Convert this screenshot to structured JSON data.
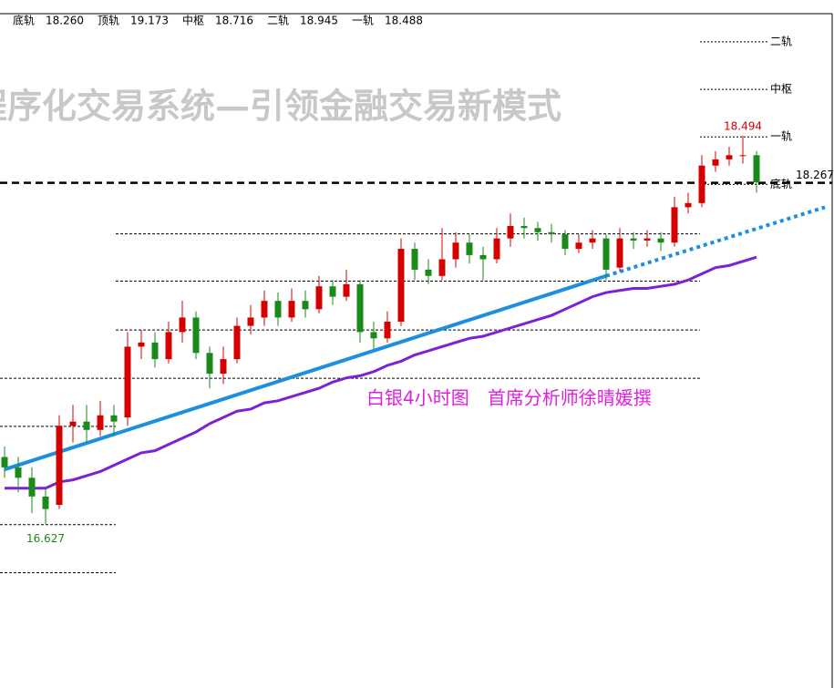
{
  "chart_data": {
    "type": "candlestick",
    "watermark": "程序化交易系统—引领金融交易新模式",
    "caption": "白银4小时图　首席分析师徐晴媛撰",
    "band_names": [
      "底轨",
      "顶轨",
      "中枢",
      "二轨",
      "一轨"
    ],
    "band_values": [
      18.26,
      19.173,
      18.716,
      18.945,
      18.488
    ],
    "band_value_labels": [
      "18.260",
      "19.173",
      "18.716",
      "18.945",
      "18.488"
    ],
    "last_price": 18.267,
    "ylim": [
      15.84,
      19.08
    ],
    "up_color": "#d40000",
    "down_color": "#1a8a1a",
    "levels": [
      18.022,
      17.795,
      17.56,
      17.328,
      17.097,
      16.625,
      16.394
    ],
    "open": [
      16.95,
      16.9,
      16.85,
      16.76,
      16.72,
      17.1,
      17.12,
      17.08,
      17.15,
      17.14,
      17.48,
      17.5,
      17.42,
      17.55,
      17.62,
      17.45,
      17.35,
      17.42,
      17.58,
      17.62,
      17.7,
      17.62,
      17.7,
      17.66,
      17.77,
      17.72,
      17.78,
      17.55,
      17.52,
      17.6,
      17.95,
      17.85,
      17.82,
      17.9,
      17.98,
      17.92,
      17.9,
      18.0,
      18.06,
      18.05,
      18.03,
      18.02,
      17.95,
      17.98,
      18.0,
      17.86,
      18.0,
      17.99,
      18.0,
      17.98,
      18.15,
      18.17,
      18.35,
      18.38,
      18.4,
      18.4
    ],
    "high": [
      17.0,
      16.95,
      16.9,
      16.8,
      17.15,
      17.2,
      17.2,
      17.22,
      17.2,
      17.55,
      17.56,
      17.55,
      17.6,
      17.7,
      17.65,
      17.48,
      17.48,
      17.62,
      17.68,
      17.75,
      17.74,
      17.76,
      17.75,
      17.82,
      17.8,
      17.85,
      17.8,
      17.6,
      17.65,
      18.0,
      17.98,
      17.9,
      18.05,
      18.03,
      18.02,
      17.96,
      18.05,
      18.12,
      18.1,
      18.08,
      18.07,
      18.04,
      18.02,
      18.04,
      18.02,
      18.05,
      18.03,
      18.04,
      18.03,
      18.2,
      18.22,
      18.4,
      18.42,
      18.44,
      18.494,
      18.42
    ],
    "low": [
      16.85,
      16.78,
      16.68,
      16.627,
      16.7,
      17.02,
      17.02,
      17.05,
      17.05,
      17.1,
      17.42,
      17.38,
      17.4,
      17.5,
      17.42,
      17.28,
      17.3,
      17.4,
      17.54,
      17.58,
      17.58,
      17.6,
      17.62,
      17.64,
      17.68,
      17.7,
      17.5,
      17.47,
      17.5,
      17.58,
      17.8,
      17.78,
      17.8,
      17.86,
      17.88,
      17.8,
      17.88,
      17.96,
      18.0,
      17.99,
      17.98,
      17.92,
      17.93,
      17.95,
      17.8,
      17.84,
      17.95,
      17.96,
      17.94,
      17.96,
      18.12,
      18.15,
      18.32,
      18.35,
      18.36,
      18.22
    ],
    "close": [
      16.9,
      16.85,
      16.76,
      16.7,
      17.1,
      17.12,
      17.08,
      17.15,
      17.12,
      17.48,
      17.5,
      17.42,
      17.55,
      17.62,
      17.45,
      17.35,
      17.42,
      17.58,
      17.62,
      17.7,
      17.62,
      17.7,
      17.66,
      17.77,
      17.72,
      17.78,
      17.55,
      17.52,
      17.6,
      17.95,
      17.85,
      17.82,
      17.9,
      17.98,
      17.92,
      17.9,
      18.0,
      18.06,
      18.05,
      18.03,
      18.02,
      17.95,
      17.98,
      18.0,
      17.85,
      18.0,
      17.99,
      18.0,
      17.98,
      18.15,
      18.17,
      18.35,
      18.38,
      18.4,
      18.4,
      18.27
    ],
    "ma": {
      "color": "#7b22d4",
      "values": [
        16.8,
        16.8,
        16.8,
        16.8,
        16.83,
        16.84,
        16.86,
        16.88,
        16.91,
        16.94,
        16.97,
        16.98,
        17.01,
        17.04,
        17.07,
        17.11,
        17.14,
        17.17,
        17.18,
        17.21,
        17.22,
        17.24,
        17.26,
        17.28,
        17.31,
        17.33,
        17.34,
        17.36,
        17.39,
        17.41,
        17.44,
        17.46,
        17.48,
        17.5,
        17.52,
        17.53,
        17.55,
        17.57,
        17.59,
        17.61,
        17.63,
        17.66,
        17.69,
        17.72,
        17.74,
        17.75,
        17.76,
        17.76,
        17.77,
        17.78,
        17.8,
        17.83,
        17.86,
        17.87,
        17.89,
        17.91
      ]
    },
    "trendline": {
      "color": "#1e8fe0",
      "index": [
        0,
        44,
        60
      ],
      "values": [
        16.89,
        17.82,
        18.15
      ]
    }
  }
}
